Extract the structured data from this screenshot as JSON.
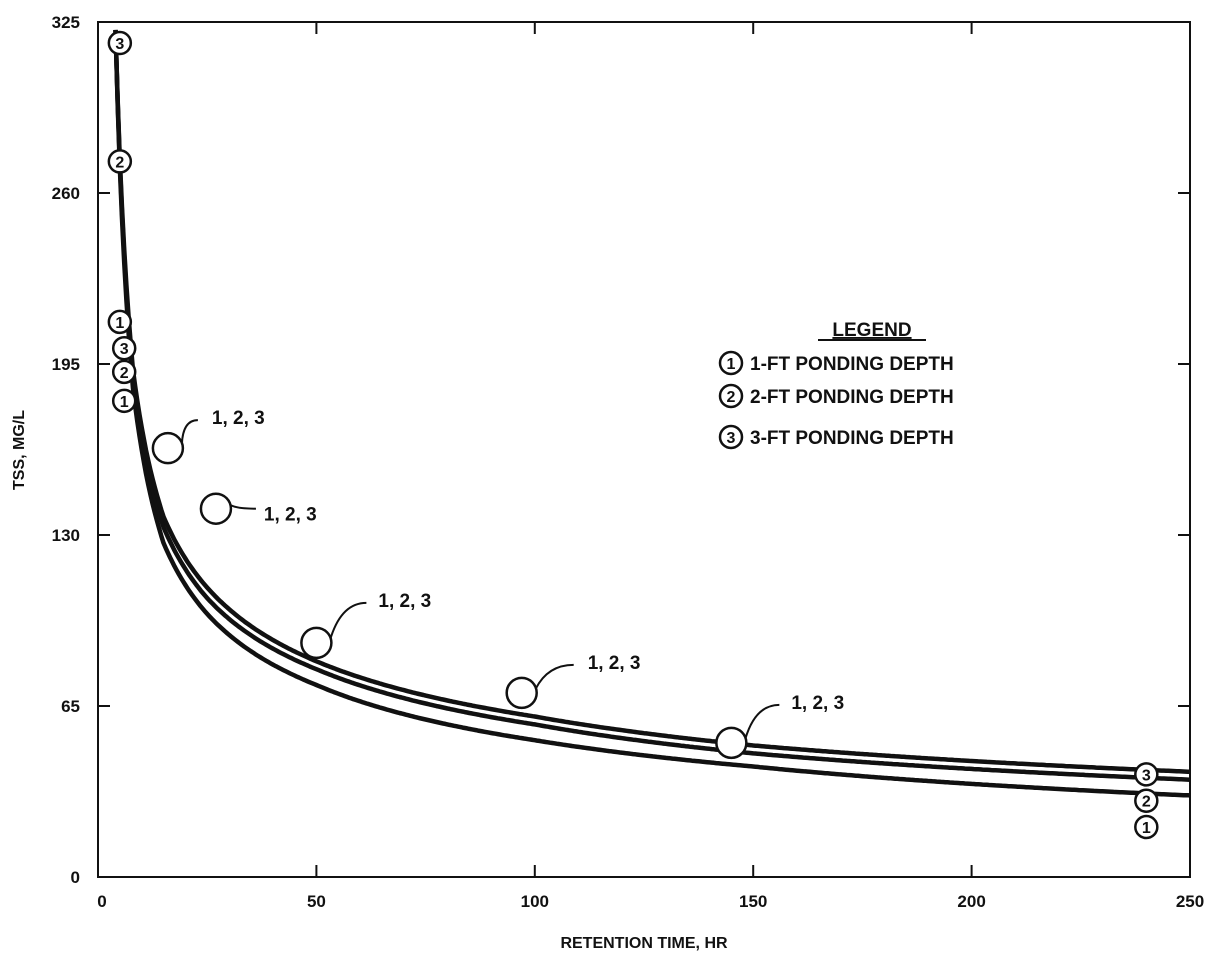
{
  "chart_data": {
    "type": "line",
    "title": "",
    "xlabel": "RETENTION TIME, HR",
    "ylabel": "TSS, MG/L",
    "xlim": [
      0,
      250
    ],
    "ylim": [
      0,
      325
    ],
    "x_ticks": [
      0,
      50,
      100,
      150,
      200,
      250
    ],
    "y_ticks": [
      0,
      65,
      130,
      195,
      260,
      325
    ],
    "grid": false,
    "legend_position": "right-middle",
    "legend": {
      "title": "LEGEND",
      "items": [
        {
          "symbol": "1",
          "label": "1-FT PONDING DEPTH"
        },
        {
          "symbol": "2",
          "label": "2-FT PONDING DEPTH"
        },
        {
          "symbol": "3",
          "label": "3-FT PONDING DEPTH"
        }
      ]
    },
    "series": [
      {
        "symbol": "1",
        "x": [
          4,
          8,
          15,
          25,
          50,
          100,
          150,
          250
        ],
        "y": [
          322,
          186,
          127,
          100,
          73,
          52,
          42,
          31
        ]
      },
      {
        "symbol": "2",
        "x": [
          4,
          8,
          15,
          25,
          50,
          100,
          150,
          250
        ],
        "y": [
          322,
          190,
          133,
          106,
          79,
          58,
          47,
          37
        ]
      },
      {
        "symbol": "3",
        "x": [
          4,
          8,
          15,
          25,
          50,
          100,
          150,
          250
        ],
        "y": [
          322,
          193,
          137,
          110,
          82,
          61,
          50,
          40
        ]
      }
    ],
    "points": [
      {
        "x": 5,
        "y": 317,
        "label": "3"
      },
      {
        "x": 5,
        "y": 272,
        "label": "2"
      },
      {
        "x": 5,
        "y": 211,
        "label": "1"
      },
      {
        "x": 6,
        "y": 201,
        "label": "3"
      },
      {
        "x": 6,
        "y": 192,
        "label": "2"
      },
      {
        "x": 6,
        "y": 181,
        "label": "1"
      },
      {
        "x": 16,
        "y": 163,
        "label": ""
      },
      {
        "x": 27,
        "y": 140,
        "label": ""
      },
      {
        "x": 50,
        "y": 89,
        "label": ""
      },
      {
        "x": 97,
        "y": 70,
        "label": ""
      },
      {
        "x": 145,
        "y": 51,
        "label": ""
      },
      {
        "x": 240,
        "y": 39,
        "label": "3"
      },
      {
        "x": 240,
        "y": 29,
        "label": "2"
      },
      {
        "x": 240,
        "y": 19,
        "label": "1"
      }
    ],
    "annotations": [
      {
        "text": "1, 2, 3",
        "point_index": 6
      },
      {
        "text": "1, 2, 3",
        "point_index": 7
      },
      {
        "text": "1, 2, 3",
        "point_index": 8
      },
      {
        "text": "1, 2, 3",
        "point_index": 9
      },
      {
        "text": "1, 2, 3",
        "point_index": 10
      }
    ]
  }
}
